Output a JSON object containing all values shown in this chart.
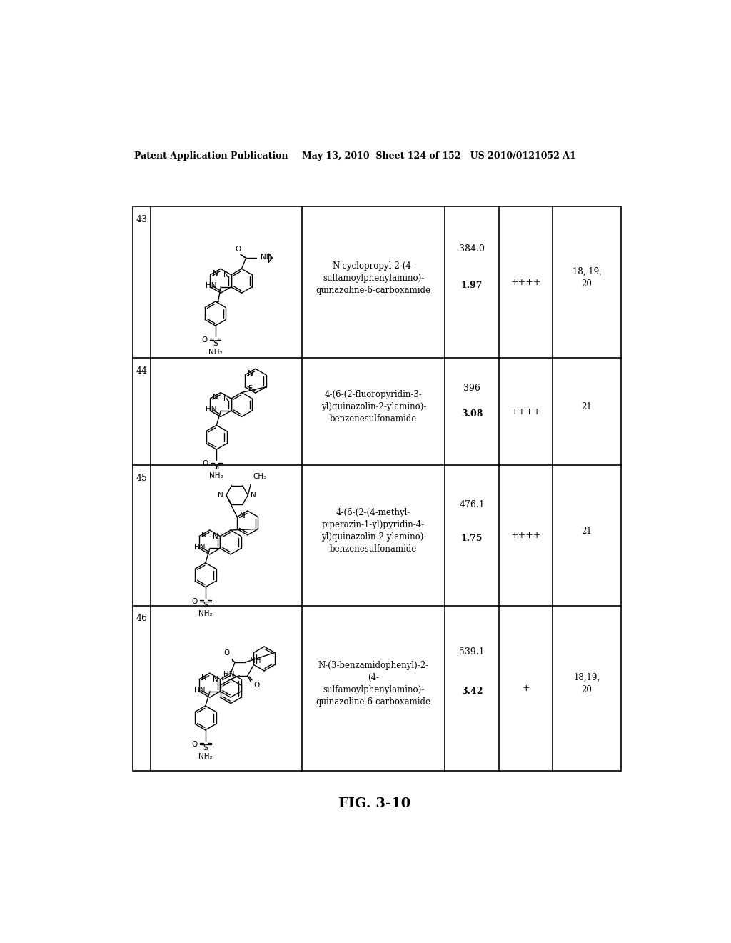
{
  "header_left": "Patent Application Publication",
  "header_mid": "May 13, 2010  Sheet 124 of 152   US 2010/0121052 A1",
  "figure_label": "FIG. 3-10",
  "background_color": "#ffffff",
  "rows": [
    {
      "num": "43",
      "name": "N-cyclopropyl-2-(4-\nsulfamoylphenylamino)-\nquinazoline-6-carboxamide",
      "mw": "384.0",
      "rt": "1.97",
      "activity": "++++",
      "ref": "18, 19,\n20"
    },
    {
      "num": "44",
      "name": "4-(6-(2-fluoropyridin-3-\nyl)quinazolin-2-ylamino)-\nbenzenesulfonamide",
      "mw": "396",
      "rt": "3.08",
      "activity": "++++",
      "ref": "21"
    },
    {
      "num": "45",
      "name": "4-(6-(2-(4-methyl-\npiperazin-1-yl)pyridin-4-\nyl)quinazolin-2-ylamino)-\nbenzenesulfonamide",
      "mw": "476.1",
      "rt": "1.75",
      "activity": "++++",
      "ref": "21"
    },
    {
      "num": "46",
      "name": "N-(3-benzamidophenyl)-2-\n(4-\nsulfamoylphenylamino)-\nquinazoline-6-carboxamide",
      "mw": "539.1",
      "rt": "3.42",
      "activity": "+",
      "ref": "18,19,\n20"
    }
  ],
  "text_color": "#000000",
  "line_color": "#000000"
}
